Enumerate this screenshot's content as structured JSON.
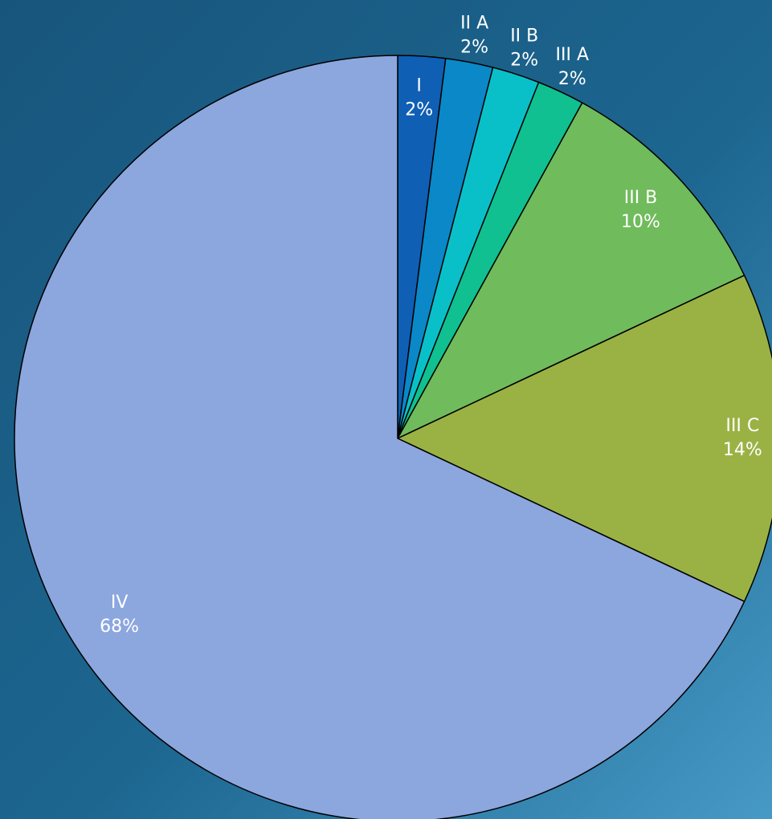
{
  "chart_data": {
    "type": "pie",
    "categories": [
      "I",
      "II A",
      "II B",
      "III A",
      "III B",
      "III C",
      "IV"
    ],
    "values": [
      2,
      2,
      2,
      2,
      10,
      14,
      68
    ],
    "value_labels": [
      "2%",
      "2%",
      "2%",
      "2%",
      "10%",
      "14%",
      "68%"
    ],
    "colors": [
      "#0f5fb4",
      "#0a88c8",
      "#0ac0c8",
      "#10c090",
      "#70bb5c",
      "#9ab244",
      "#8ca6de"
    ]
  }
}
